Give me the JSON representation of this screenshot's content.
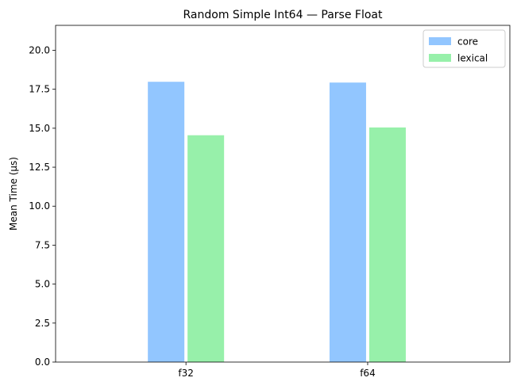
{
  "chart_data": {
    "type": "bar",
    "title": "Random Simple Int64 — Parse Float",
    "xlabel": "",
    "ylabel": "Mean Time (µs)",
    "categories": [
      "f32",
      "f64"
    ],
    "series": [
      {
        "name": "core",
        "values": [
          17.98,
          17.93
        ],
        "color": "#92c6ff"
      },
      {
        "name": "lexical",
        "values": [
          14.55,
          15.05
        ],
        "color": "#97f0aa"
      }
    ],
    "ylim": [
      0,
      21.6
    ],
    "yticks": [
      "0.0",
      "2.5",
      "5.0",
      "7.5",
      "10.0",
      "12.5",
      "15.0",
      "17.5",
      "20.0"
    ],
    "ytick_values": [
      0,
      2.5,
      5,
      7.5,
      10,
      12.5,
      15,
      17.5,
      20
    ],
    "grid": false,
    "legend_position": "top-right"
  }
}
